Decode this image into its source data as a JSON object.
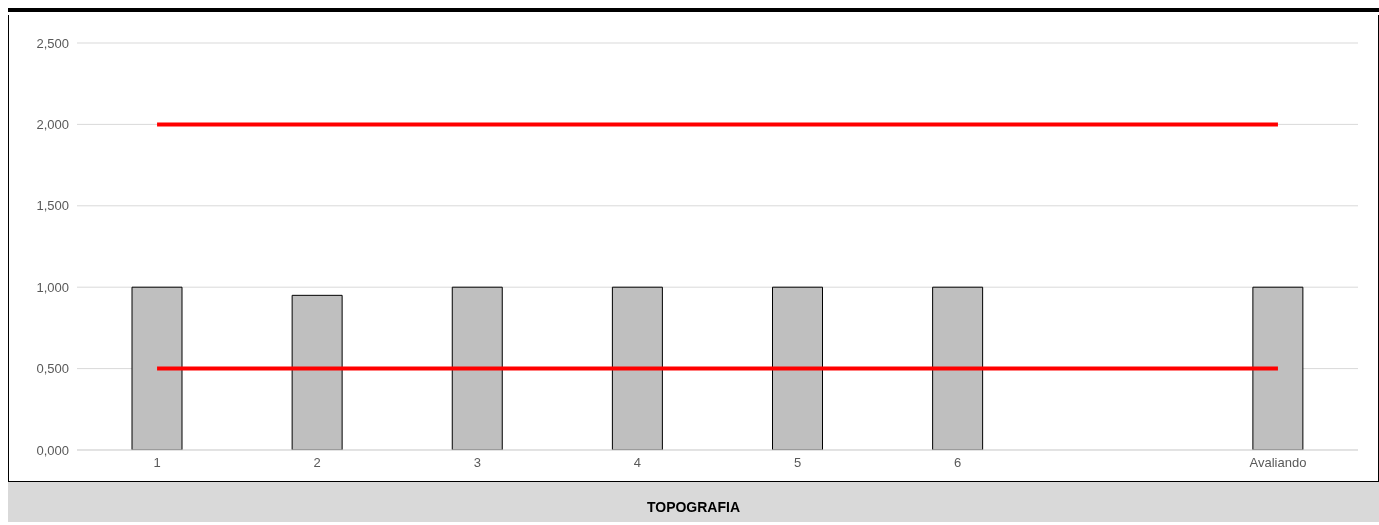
{
  "chart_data": {
    "type": "bar",
    "title": "TOPOGRAFIA",
    "categories": [
      "1",
      "2",
      "3",
      "4",
      "5",
      "6",
      null,
      "Avaliando"
    ],
    "series": [
      {
        "color": "#bfbfbf",
        "values": [
          1.0,
          0.95,
          1.0,
          1.0,
          1.0,
          1.0,
          null,
          1.0
        ]
      },
      {
        "type": "line",
        "color": "#ff0000",
        "values": [
          2.0,
          2.0,
          2.0,
          2.0,
          2.0,
          2.0,
          2.0,
          2.0
        ]
      },
      {
        "type": "line",
        "color": "#ff0000",
        "values": [
          0.5,
          0.5,
          0.5,
          0.5,
          0.5,
          0.5,
          0.5,
          0.5
        ]
      }
    ],
    "ylim": [
      0,
      2.5
    ],
    "yticks": [
      {
        "value": 0,
        "label": "0,000"
      },
      {
        "value": 0.5,
        "label": "0,500"
      },
      {
        "value": 1,
        "label": "1,000"
      },
      {
        "value": 1.5,
        "label": "1,500"
      },
      {
        "value": 2,
        "label": "2,000"
      },
      {
        "value": 2.5,
        "label": "2,500"
      }
    ],
    "grid": "y"
  }
}
